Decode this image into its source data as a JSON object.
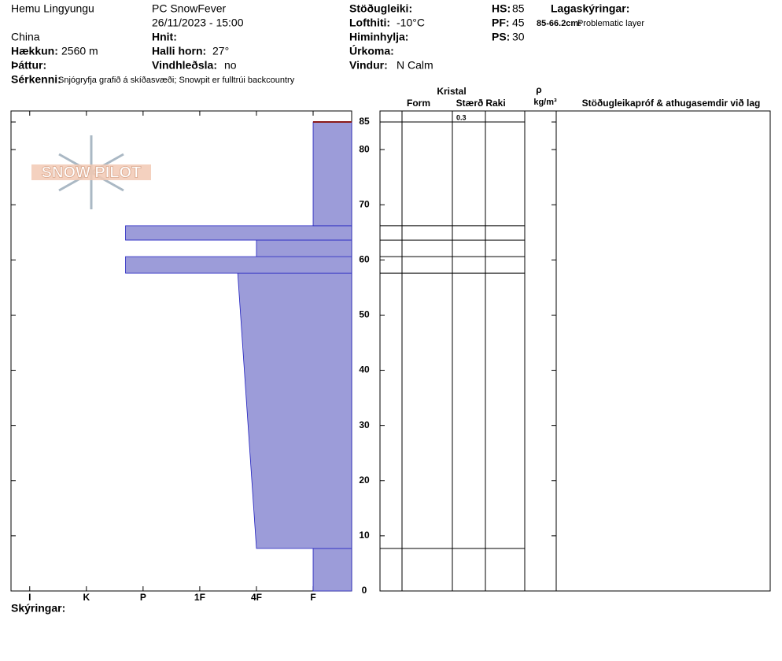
{
  "header": {
    "fields": [
      {
        "value": "Hemu Lingyungu"
      },
      {
        "value": "China"
      },
      {
        "label": "Hækkun:",
        "value": "2560 m"
      },
      {
        "label": "Þáttur:"
      },
      {
        "label": "Sérkenni:",
        "value": "Snjógryfja grafið á skíðasvæði;  Snowpit er fulltrúi backcountry"
      },
      {
        "value": "PC SnowFever"
      },
      {
        "value": "26/11/2023 - 15:00"
      },
      {
        "label": "Hnit:"
      },
      {
        "label": "Halli horn:",
        "value": "27°"
      },
      {
        "label": "Vindhleðsla:",
        "value": "no"
      },
      {
        "label": "Stöðugleiki:"
      },
      {
        "label": "Lofthiti:",
        "value": "-10°C"
      },
      {
        "label": "Himinhylja:"
      },
      {
        "label": "Úrkoma:"
      },
      {
        "label": "Vindur:",
        "value": "N Calm"
      },
      {
        "label": "HS:",
        "value": "85"
      },
      {
        "label": "PF:",
        "value": "45"
      },
      {
        "label": "PS:",
        "value": "30"
      },
      {
        "label": "Lagaskýringar:"
      },
      {
        "label": "85-66.2cm:",
        "value": "Problematic layer"
      }
    ],
    "logo": "SNOW PILOT",
    "legend_label": "Skýringar:"
  },
  "table": {
    "group": "Kristal",
    "columns": [
      "Form",
      "Stærð",
      "Raki"
    ],
    "density": "ρ",
    "density_unit": "kg/m³",
    "comments": "Stöðugleikapróf & athugasemdir við lag",
    "top_size": "0.3"
  },
  "chart_data": {
    "type": "profile",
    "ylim": [
      0,
      87
    ],
    "yticks": [
      0,
      10,
      20,
      30,
      40,
      50,
      60,
      70,
      80,
      85
    ],
    "xlim": [
      6.33,
      0.32
    ],
    "xticks": [
      {
        "value": 6,
        "label": "I"
      },
      {
        "value": 5,
        "label": "K"
      },
      {
        "value": 4,
        "label": "P"
      },
      {
        "value": 3,
        "label": "1F"
      },
      {
        "value": 2,
        "label": "4F"
      },
      {
        "value": 1,
        "label": "F"
      }
    ],
    "color": "#9c9cd9",
    "edge_color": "#2020c0",
    "surface_color": "#8b1a1a",
    "layers": [
      {
        "bottom": 0,
        "top": 7.7,
        "hardness": 1
      },
      {
        "bottom": 7.7,
        "top": 57.6,
        "hardness": 2,
        "hardness_top": 2.33
      },
      {
        "bottom": 57.6,
        "top": 60.6,
        "hardness": 4.31
      },
      {
        "bottom": 60.6,
        "top": 63.6,
        "hardness": 2
      },
      {
        "bottom": 63.6,
        "top": 66.2,
        "hardness": 4.31
      },
      {
        "bottom": 66.2,
        "top": 85,
        "hardness": 1
      }
    ]
  }
}
